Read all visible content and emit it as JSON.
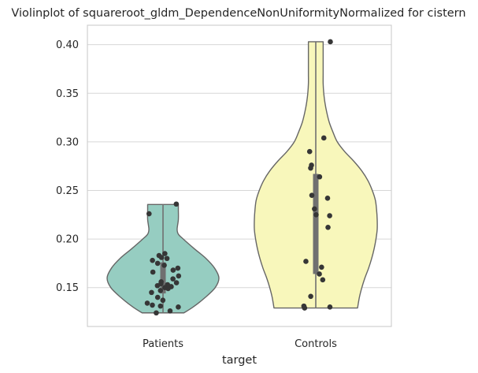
{
  "chart_data": {
    "type": "violin",
    "title": "Violinplot of squareroot_gldm_DependenceNonUniformityNormalized for cistern",
    "xlabel": "target",
    "ylabel": "",
    "ylim": [
      0.11,
      0.42
    ],
    "yticks": [
      0.15,
      0.2,
      0.25,
      0.3,
      0.35,
      0.4
    ],
    "ytick_labels": [
      "0.15",
      "0.20",
      "0.25",
      "0.30",
      "0.35",
      "0.40"
    ],
    "grid": true,
    "categories": [
      "Patients",
      "Controls"
    ],
    "colors": {
      "Patients": "#96cdc1",
      "Controls": "#f8f7bb",
      "outline": "#666666",
      "points": "#363636",
      "grid": "#d7d7d7",
      "box": "#707070"
    },
    "violins": [
      {
        "category": "Patients",
        "y": [
          0.124,
          0.13,
          0.14,
          0.15,
          0.16,
          0.17,
          0.18,
          0.19,
          0.2,
          0.205,
          0.21,
          0.22,
          0.23,
          0.2355
        ],
        "density": [
          0.34,
          0.49,
          0.69,
          0.85,
          0.91,
          0.84,
          0.7,
          0.51,
          0.33,
          0.25,
          0.23,
          0.25,
          0.25,
          0.25
        ],
        "quartiles": [
          0.144,
          0.1535,
          0.176
        ],
        "points": [
          0.236,
          0.226,
          0.185,
          0.183,
          0.181,
          0.18,
          0.178,
          0.175,
          0.173,
          0.17,
          0.168,
          0.166,
          0.162,
          0.159,
          0.156,
          0.155,
          0.154,
          0.153,
          0.152,
          0.151,
          0.15,
          0.149,
          0.147,
          0.145,
          0.14,
          0.137,
          0.134,
          0.132,
          0.131,
          0.13,
          0.126,
          0.124
        ]
      },
      {
        "category": "Controls",
        "y": [
          0.129,
          0.14,
          0.15,
          0.16,
          0.17,
          0.18,
          0.19,
          0.2,
          0.21,
          0.22,
          0.23,
          0.24,
          0.25,
          0.26,
          0.27,
          0.28,
          0.29,
          0.3,
          0.31,
          0.32,
          0.33,
          0.34,
          0.35,
          0.36,
          0.37,
          0.38,
          0.39,
          0.403
        ],
        "density": [
          0.68,
          0.71,
          0.75,
          0.8,
          0.86,
          0.91,
          0.95,
          0.98,
          1.0,
          1.0,
          0.99,
          0.97,
          0.92,
          0.85,
          0.75,
          0.62,
          0.47,
          0.35,
          0.28,
          0.22,
          0.18,
          0.15,
          0.13,
          0.12,
          0.12,
          0.12,
          0.12,
          0.12
        ],
        "quartiles": [
          0.164,
          0.205,
          0.267
        ],
        "points": [
          0.403,
          0.304,
          0.29,
          0.276,
          0.273,
          0.264,
          0.245,
          0.242,
          0.231,
          0.225,
          0.224,
          0.212,
          0.177,
          0.171,
          0.164,
          0.158,
          0.141,
          0.131,
          0.13,
          0.129
        ]
      }
    ]
  }
}
